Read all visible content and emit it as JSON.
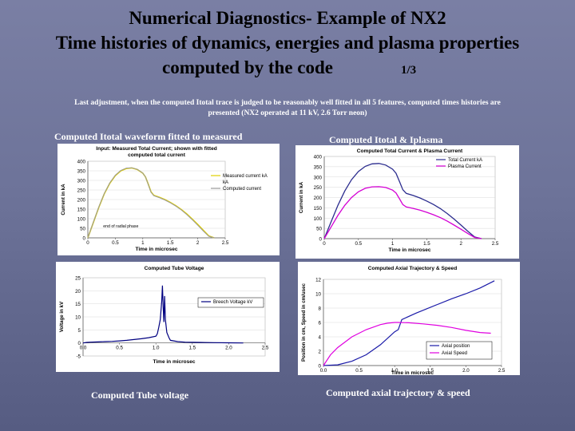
{
  "slide": {
    "title_lines": [
      "Numerical Diagnostics- Example of NX2",
      "Time histories of dynamics, energies and plasma properties",
      "computed by the code"
    ],
    "slide_number": "1/3",
    "caption_lines": [
      "Last adjustment, when the computed Itotal trace is judged to be reasonably well fitted in all 5 features, computed times histories are",
      "presented (NX2 operated at 11 kV, 2.6 Torr neon)"
    ],
    "panel_labels": {
      "top_left": "Computed Itotal waveform fitted to measured",
      "top_right": "Computed Itotal & Iplasma",
      "bottom_left": "Computed Tube voltage",
      "bottom_right": "Computed axial trajectory & speed"
    },
    "colors": {
      "background": "#6d7399",
      "measured": "#e0d000",
      "computed_total": "#9a9a9a",
      "total_current": "#2b2c8e",
      "plasma_current": "#d400d4",
      "voltage": "#000080",
      "axial_position": "#1a1aa8",
      "axial_speed": "#e000e0"
    }
  },
  "chart_data": [
    {
      "id": "measured_vs_computed",
      "type": "line",
      "title_lines": [
        "Input: Measured Total Current; shown with fitted",
        "computed total current"
      ],
      "xlabel": "Time in microsec",
      "ylabel": "Current in kA",
      "xlim": [
        0,
        2.5
      ],
      "ylim": [
        0,
        400
      ],
      "xticks": [
        0,
        0.5,
        1,
        1.5,
        2,
        2.5
      ],
      "xtick_labels": [
        "0",
        "0.5",
        "1",
        "1.5",
        "2",
        "2.5"
      ],
      "yticks": [
        0,
        50,
        100,
        150,
        200,
        250,
        300,
        350,
        400
      ],
      "ytick_labels": [
        "0",
        "50",
        "100",
        "150",
        "200",
        "250",
        "300",
        "350",
        "400"
      ],
      "legend_position": "right",
      "annotation": "end of radial phase",
      "series": [
        {
          "name": "Measured current kA",
          "x": [
            0,
            0.1,
            0.2,
            0.3,
            0.4,
            0.5,
            0.6,
            0.7,
            0.8,
            0.9,
            1.0,
            1.05,
            1.1,
            1.15,
            1.2,
            1.3,
            1.4,
            1.5,
            1.6,
            1.7,
            1.8,
            1.9,
            2.0,
            2.1,
            2.2,
            2.3
          ],
          "y": [
            0,
            80,
            160,
            230,
            285,
            325,
            350,
            362,
            365,
            357,
            338,
            318,
            280,
            240,
            222,
            212,
            200,
            185,
            168,
            148,
            125,
            98,
            70,
            40,
            10,
            0
          ]
        },
        {
          "name": "kA",
          "x": [],
          "y": []
        },
        {
          "name": "Computed current",
          "x": [
            0,
            0.1,
            0.2,
            0.3,
            0.4,
            0.5,
            0.6,
            0.7,
            0.8,
            0.9,
            1.0,
            1.05,
            1.1,
            1.15,
            1.2,
            1.3,
            1.4,
            1.5,
            1.6,
            1.7,
            1.8,
            1.9,
            2.0,
            2.1,
            2.2,
            2.3
          ],
          "y": [
            0,
            82,
            162,
            232,
            287,
            327,
            352,
            364,
            366,
            358,
            338,
            318,
            278,
            238,
            220,
            210,
            198,
            183,
            166,
            146,
            122,
            95,
            66,
            36,
            8,
            0
          ]
        }
      ]
    },
    {
      "id": "total_and_plasma_current",
      "type": "line",
      "title": "Computed Total Current & Plasma Current",
      "xlabel": "Time in microsec",
      "ylabel": "Current in kA",
      "xlim": [
        0,
        2.5
      ],
      "ylim": [
        0,
        400
      ],
      "xticks": [
        0,
        0.5,
        1,
        1.5,
        2,
        2.5
      ],
      "xtick_labels": [
        "0",
        "0.5",
        "1",
        "1.5",
        "2",
        "2.5"
      ],
      "yticks": [
        0,
        50,
        100,
        150,
        200,
        250,
        300,
        350,
        400
      ],
      "ytick_labels": [
        "0",
        "50",
        "100",
        "150",
        "200",
        "250",
        "300",
        "350",
        "400"
      ],
      "legend_position": "top-right",
      "series": [
        {
          "name": "Total Current kA",
          "x": [
            0,
            0.1,
            0.2,
            0.3,
            0.4,
            0.5,
            0.6,
            0.7,
            0.8,
            0.9,
            1.0,
            1.05,
            1.1,
            1.15,
            1.2,
            1.3,
            1.4,
            1.5,
            1.6,
            1.7,
            1.8,
            1.9,
            2.0,
            2.1,
            2.2,
            2.3
          ],
          "y": [
            0,
            82,
            162,
            232,
            287,
            327,
            352,
            364,
            366,
            358,
            338,
            318,
            278,
            238,
            220,
            210,
            198,
            183,
            166,
            146,
            122,
            95,
            66,
            36,
            8,
            0
          ]
        },
        {
          "name": "Plasma Current",
          "x": [
            0,
            0.1,
            0.2,
            0.3,
            0.4,
            0.5,
            0.6,
            0.7,
            0.8,
            0.9,
            1.0,
            1.05,
            1.1,
            1.15,
            1.2,
            1.3,
            1.4,
            1.5,
            1.6,
            1.7,
            1.8,
            1.9,
            2.0,
            2.1,
            2.2,
            2.3
          ],
          "y": [
            0,
            57,
            113,
            162,
            200,
            228,
            245,
            252,
            253,
            249,
            236,
            222,
            194,
            166,
            154,
            147,
            139,
            128,
            116,
            102,
            85,
            66,
            46,
            25,
            6,
            0
          ]
        }
      ]
    },
    {
      "id": "tube_voltage",
      "type": "line",
      "title": "Computed Tube Voltage",
      "xlabel": "Time in microsec",
      "ylabel": "Voltage in kV",
      "xlim": [
        0,
        2.5
      ],
      "ylim": [
        -5,
        25
      ],
      "xticks": [
        0,
        0.5,
        1,
        1.5,
        2,
        2.5
      ],
      "xtick_labels": [
        "0.0",
        "0.5",
        "1.0",
        "1.5",
        "2.0",
        "2.5"
      ],
      "yticks": [
        -5,
        0,
        5,
        10,
        15,
        20,
        25
      ],
      "ytick_labels": [
        "-5",
        "0",
        "5",
        "10",
        "15",
        "20",
        "25"
      ],
      "legend_position": "right",
      "series": [
        {
          "name": "Breech Voltage kV",
          "x": [
            0,
            0.05,
            0.1,
            0.2,
            0.3,
            0.4,
            0.5,
            0.6,
            0.7,
            0.8,
            0.9,
            1.0,
            1.02,
            1.04,
            1.06,
            1.08,
            1.09,
            1.1,
            1.11,
            1.12,
            1.13,
            1.15,
            1.18,
            1.2,
            1.3,
            1.4,
            1.6,
            1.8,
            2.0,
            2.2
          ],
          "y": [
            0,
            0.2,
            0.3,
            0.4,
            0.5,
            0.6,
            0.8,
            1.0,
            1.3,
            1.6,
            2.0,
            2.6,
            3.5,
            6,
            9,
            16,
            22,
            14,
            8,
            18,
            9,
            4,
            2,
            1,
            0.5,
            0.3,
            0.2,
            0.1,
            0.05,
            0
          ]
        }
      ]
    },
    {
      "id": "axial_trajectory_speed",
      "type": "line",
      "title": "Computed Axial Trajectory & Speed",
      "xlabel": "Time in microsec",
      "ylabel": "Position in cm, Speed in cm/usec",
      "xlim": [
        0,
        2.5
      ],
      "ylim": [
        0,
        12
      ],
      "xticks": [
        0,
        0.5,
        1,
        1.5,
        2,
        2.5
      ],
      "xtick_labels": [
        "0.0",
        "0.5",
        "1.0",
        "1.5",
        "2.0",
        "2.5"
      ],
      "yticks": [
        0,
        2,
        4,
        6,
        8,
        10,
        12
      ],
      "ytick_labels": [
        "0",
        "2",
        "4",
        "6",
        "8",
        "10",
        "12"
      ],
      "legend_position": "bottom-right",
      "series": [
        {
          "name": "Axial position",
          "x": [
            0,
            0.2,
            0.4,
            0.6,
            0.8,
            1.0,
            1.05,
            1.1,
            1.3,
            1.6,
            1.8,
            2.0,
            2.2,
            2.4
          ],
          "y": [
            0,
            0.1,
            0.6,
            1.5,
            2.9,
            4.7,
            5.0,
            6.4,
            7.3,
            8.5,
            9.3,
            10.0,
            10.8,
            11.8
          ]
        },
        {
          "name": "Axial Speed",
          "x": [
            0,
            0.1,
            0.2,
            0.4,
            0.6,
            0.8,
            0.9,
            1.0,
            1.05,
            1.2,
            1.4,
            1.6,
            1.8,
            2.0,
            2.2,
            2.35
          ],
          "y": [
            0,
            1.5,
            2.5,
            4.0,
            5.0,
            5.7,
            5.9,
            6.0,
            6.0,
            5.95,
            5.8,
            5.6,
            5.3,
            4.9,
            4.6,
            4.5
          ]
        }
      ]
    }
  ]
}
